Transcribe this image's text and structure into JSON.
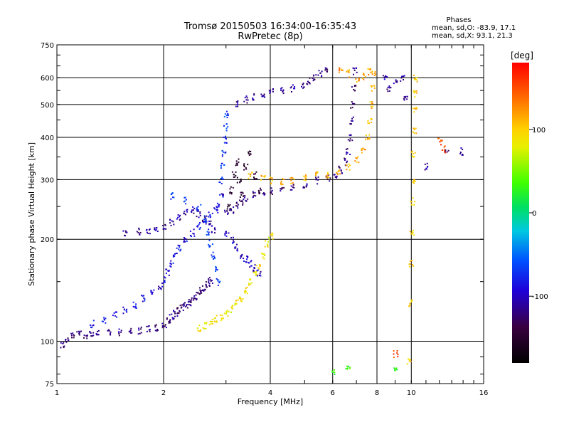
{
  "chart_data": {
    "type": "scatter",
    "title": "Tromsø 20150503 16:34:00-16:35:43",
    "subtitle": "RwPretec (8p)",
    "phases_box": {
      "heading": "Phases",
      "line1": "mean, sd,O: -83.9, 17.1",
      "line2": "mean, sd,X:  93.1, 21.3"
    },
    "xlabel": "Frequency [MHz]",
    "ylabel": "Stationary phase Virtual Height [km]",
    "x_scale": "log",
    "y_scale": "log",
    "xlim": [
      1,
      16
    ],
    "ylim": [
      75,
      750
    ],
    "x_ticks": [
      1,
      2,
      4,
      6,
      8,
      10,
      16
    ],
    "x_tick_labels": [
      "1",
      "2",
      "4",
      "6",
      "8",
      "10",
      "16"
    ],
    "y_ticks": [
      75,
      100,
      200,
      300,
      400,
      500,
      600,
      750
    ],
    "y_tick_labels": [
      "75",
      "100",
      "200",
      "300",
      "400",
      "500",
      "600",
      "750"
    ],
    "grid": true,
    "colorbar": {
      "label": "[deg]",
      "range": [
        -180,
        180
      ],
      "ticks": [
        100,
        0,
        -100
      ],
      "tick_labels": [
        "100",
        "0",
        "-100"
      ]
    },
    "series": [
      {
        "phase": -120,
        "points": [
          [
            1.03,
            98
          ],
          [
            1.06,
            101
          ],
          [
            1.1,
            104
          ],
          [
            1.15,
            106
          ],
          [
            1.2,
            105
          ],
          [
            1.25,
            106
          ],
          [
            1.3,
            106
          ],
          [
            1.4,
            106
          ],
          [
            1.5,
            107
          ],
          [
            1.6,
            107
          ],
          [
            1.7,
            108
          ],
          [
            1.8,
            109
          ],
          [
            1.9,
            110
          ],
          [
            2.0,
            112
          ],
          [
            2.05,
            115
          ],
          [
            2.1,
            118
          ],
          [
            2.15,
            121
          ],
          [
            2.2,
            124
          ],
          [
            2.25,
            126
          ],
          [
            2.3,
            128
          ],
          [
            2.35,
            131
          ],
          [
            2.4,
            133
          ],
          [
            2.45,
            136
          ],
          [
            2.5,
            139
          ],
          [
            2.55,
            142
          ],
          [
            2.6,
            145
          ],
          [
            2.65,
            148
          ],
          [
            2.7,
            152
          ]
        ]
      },
      {
        "phase": -90,
        "points": [
          [
            1.25,
            113
          ],
          [
            1.35,
            116
          ],
          [
            1.45,
            120
          ],
          [
            1.55,
            124
          ],
          [
            1.65,
            128
          ],
          [
            1.75,
            134
          ],
          [
            1.85,
            140
          ],
          [
            1.95,
            146
          ],
          [
            2.0,
            152
          ],
          [
            2.05,
            160
          ],
          [
            2.1,
            170
          ],
          [
            2.15,
            180
          ],
          [
            2.2,
            190
          ],
          [
            2.3,
            200
          ],
          [
            2.4,
            210
          ],
          [
            2.5,
            220
          ],
          [
            2.6,
            228
          ],
          [
            2.7,
            236
          ],
          [
            2.8,
            245
          ],
          [
            2.85,
            255
          ],
          [
            2.9,
            270
          ]
        ]
      },
      {
        "phase": -110,
        "points": [
          [
            1.55,
            210
          ],
          [
            1.7,
            212
          ],
          [
            1.8,
            213
          ],
          [
            1.9,
            216
          ],
          [
            2.0,
            220
          ],
          [
            2.1,
            225
          ],
          [
            2.2,
            232
          ],
          [
            2.3,
            240
          ],
          [
            2.4,
            245
          ],
          [
            2.5,
            238
          ],
          [
            2.6,
            230
          ],
          [
            2.7,
            222
          ],
          [
            2.75,
            215
          ]
        ]
      },
      {
        "phase": -70,
        "points": [
          [
            2.1,
            270
          ],
          [
            2.3,
            262
          ],
          [
            2.5,
            250
          ],
          [
            2.6,
            230
          ],
          [
            2.65,
            210
          ],
          [
            2.7,
            195
          ],
          [
            2.75,
            180
          ],
          [
            2.8,
            165
          ],
          [
            2.85,
            150
          ],
          [
            2.9,
            300
          ],
          [
            2.92,
            330
          ],
          [
            2.95,
            360
          ],
          [
            2.97,
            395
          ],
          [
            2.98,
            430
          ],
          [
            2.99,
            470
          ]
        ]
      },
      {
        "phase": -150,
        "points": [
          [
            3.05,
            250
          ],
          [
            3.1,
            280
          ],
          [
            3.15,
            310
          ],
          [
            3.2,
            340
          ],
          [
            3.25,
            300
          ],
          [
            3.3,
            270
          ],
          [
            3.4,
            330
          ],
          [
            3.5,
            360
          ],
          [
            3.6,
            310
          ],
          [
            3.7,
            280
          ]
        ]
      },
      {
        "phase": -120,
        "points": [
          [
            3.0,
            240
          ],
          [
            3.1,
            245
          ],
          [
            3.2,
            252
          ],
          [
            3.3,
            260
          ],
          [
            3.4,
            266
          ],
          [
            3.6,
            272
          ],
          [
            3.8,
            276
          ],
          [
            4.0,
            278
          ],
          [
            4.3,
            280
          ],
          [
            4.6,
            285
          ],
          [
            5.0,
            292
          ],
          [
            5.4,
            300
          ],
          [
            5.8,
            305
          ],
          [
            6.1,
            312
          ],
          [
            6.3,
            322
          ],
          [
            6.5,
            340
          ],
          [
            6.6,
            365
          ],
          [
            6.7,
            400
          ],
          [
            6.75,
            450
          ],
          [
            6.8,
            500
          ],
          [
            6.85,
            560
          ],
          [
            6.9,
            630
          ]
        ]
      },
      {
        "phase": -115,
        "points": [
          [
            3.2,
            505
          ],
          [
            3.4,
            520
          ],
          [
            3.6,
            530
          ],
          [
            3.8,
            540
          ],
          [
            4.0,
            548
          ],
          [
            4.3,
            553
          ],
          [
            4.6,
            560
          ],
          [
            4.9,
            575
          ],
          [
            5.1,
            590
          ],
          [
            5.3,
            605
          ],
          [
            5.5,
            620
          ],
          [
            5.7,
            640
          ]
        ]
      },
      {
        "phase": -100,
        "points": [
          [
            3.0,
            210
          ],
          [
            3.1,
            200
          ],
          [
            3.2,
            190
          ],
          [
            3.3,
            180
          ],
          [
            3.4,
            175
          ],
          [
            3.5,
            170
          ],
          [
            3.6,
            165
          ],
          [
            3.7,
            160
          ]
        ]
      },
      {
        "phase": 90,
        "points": [
          [
            2.5,
            110
          ],
          [
            2.6,
            112
          ],
          [
            2.7,
            115
          ],
          [
            2.8,
            117
          ],
          [
            2.9,
            118
          ],
          [
            3.0,
            121
          ],
          [
            3.1,
            125
          ],
          [
            3.2,
            130
          ],
          [
            3.3,
            135
          ],
          [
            3.4,
            142
          ],
          [
            3.5,
            150
          ],
          [
            3.6,
            158
          ],
          [
            3.7,
            168
          ],
          [
            3.8,
            180
          ],
          [
            3.9,
            195
          ],
          [
            4.0,
            205
          ]
        ]
      },
      {
        "phase": 110,
        "points": [
          [
            3.5,
            310
          ],
          [
            3.8,
            305
          ],
          [
            4.0,
            300
          ],
          [
            4.3,
            298
          ],
          [
            4.6,
            300
          ],
          [
            5.0,
            305
          ],
          [
            5.4,
            310
          ],
          [
            5.8,
            312
          ],
          [
            6.2,
            318
          ],
          [
            6.6,
            330
          ],
          [
            7.0,
            345
          ],
          [
            7.3,
            370
          ],
          [
            7.5,
            400
          ],
          [
            7.6,
            450
          ],
          [
            7.7,
            500
          ],
          [
            7.75,
            560
          ],
          [
            7.8,
            620
          ]
        ]
      },
      {
        "phase": 120,
        "points": [
          [
            6.3,
            640
          ],
          [
            6.6,
            620
          ],
          [
            7.0,
            600
          ],
          [
            7.3,
            610
          ],
          [
            7.6,
            630
          ]
        ]
      },
      {
        "phase": 100,
        "points": [
          [
            9.8,
            88
          ],
          [
            9.9,
            130
          ],
          [
            9.95,
            170
          ],
          [
            10.0,
            210
          ],
          [
            10.05,
            260
          ],
          [
            10.1,
            300
          ],
          [
            10.1,
            360
          ],
          [
            10.15,
            420
          ],
          [
            10.2,
            480
          ],
          [
            10.2,
            540
          ],
          [
            10.25,
            600
          ]
        ]
      },
      {
        "phase": -110,
        "points": [
          [
            8.4,
            600
          ],
          [
            8.6,
            560
          ],
          [
            9.0,
            590
          ],
          [
            9.4,
            600
          ],
          [
            9.6,
            520
          ],
          [
            11.0,
            330
          ],
          [
            12.5,
            360
          ],
          [
            13.8,
            365
          ]
        ]
      },
      {
        "phase": 150,
        "points": [
          [
            9.0,
            92
          ],
          [
            12.0,
            390
          ],
          [
            12.3,
            370
          ]
        ]
      },
      {
        "phase": 30,
        "points": [
          [
            6.0,
            82
          ],
          [
            6.6,
            84
          ],
          [
            9.0,
            82
          ]
        ]
      }
    ]
  }
}
